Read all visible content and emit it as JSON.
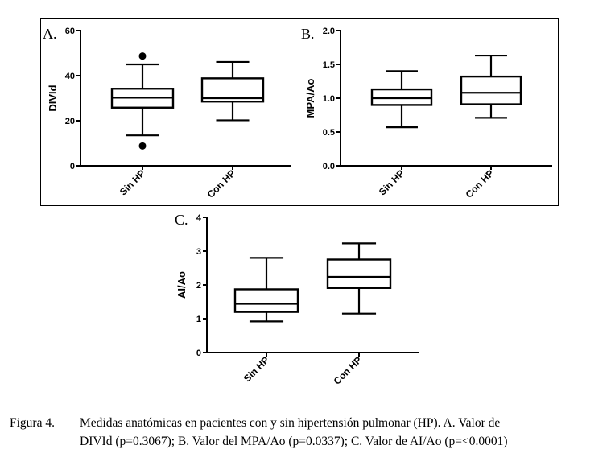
{
  "figure": {
    "caption_label": "Figura 4.",
    "caption_text_line1": "Medidas anatómicas en pacientes con y sin hipertensión pulmonar (HP). A. Valor de",
    "caption_text_line2": "DIVId (p=0.3067); B. Valor del MPA/Ao (p=0.0337); C. Valor de AI/Ao (p=<0.0001)"
  },
  "chart_data": [
    {
      "type": "box",
      "panel_label": "A.",
      "ylabel": "DIVId",
      "ylim": [
        0,
        60
      ],
      "yticks": [
        "0",
        "20",
        "40",
        "60"
      ],
      "categories": [
        "Sin HP",
        "Con HP"
      ],
      "boxes": [
        {
          "category": "Sin HP",
          "whisker_low": 13.5,
          "q1": 25.8,
          "median": 30.2,
          "q3": 34.2,
          "whisker_high": 45,
          "outliers": [
            8.8,
            48.7
          ]
        },
        {
          "category": "Con HP",
          "whisker_low": 20.2,
          "q1": 28.5,
          "median": 30.0,
          "q3": 38.8,
          "whisker_high": 46.1,
          "outliers": []
        }
      ]
    },
    {
      "type": "box",
      "panel_label": "B.",
      "ylabel": "MPA/Ao",
      "ylim": [
        0,
        2.0
      ],
      "yticks": [
        "0.0",
        "0.5",
        "1.0",
        "1.5",
        "2.0"
      ],
      "categories": [
        "Sin HP",
        "Con HP"
      ],
      "boxes": [
        {
          "category": "Sin HP",
          "whisker_low": 0.57,
          "q1": 0.9,
          "median": 1.0,
          "q3": 1.13,
          "whisker_high": 1.4,
          "outliers": []
        },
        {
          "category": "Con HP",
          "whisker_low": 0.71,
          "q1": 0.91,
          "median": 1.08,
          "q3": 1.32,
          "whisker_high": 1.63,
          "outliers": []
        }
      ]
    },
    {
      "type": "box",
      "panel_label": "C.",
      "ylabel": "AI/Ao",
      "ylim": [
        0,
        4
      ],
      "yticks": [
        "0",
        "1",
        "2",
        "3",
        "4"
      ],
      "categories": [
        "Sin HP",
        "Con HP"
      ],
      "boxes": [
        {
          "category": "Sin HP",
          "whisker_low": 0.92,
          "q1": 1.2,
          "median": 1.44,
          "q3": 1.87,
          "whisker_high": 2.8,
          "outliers": []
        },
        {
          "category": "Con HP",
          "whisker_low": 1.15,
          "q1": 1.91,
          "median": 2.24,
          "q3": 2.75,
          "whisker_high": 3.23,
          "outliers": []
        }
      ]
    }
  ]
}
